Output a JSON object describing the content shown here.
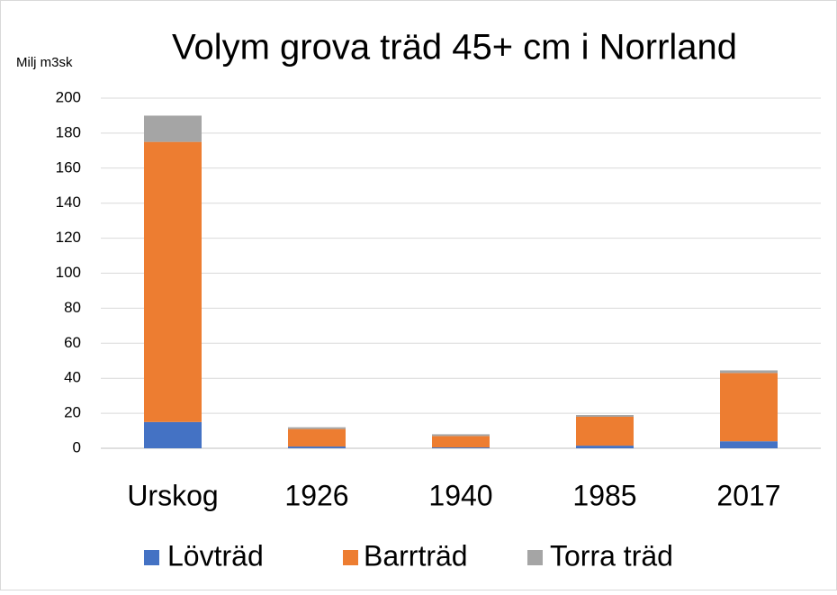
{
  "chart_data": {
    "type": "bar",
    "stacked": true,
    "title": "Volym grova träd 45+ cm i Norrland",
    "y_label": "Milj m3sk",
    "categories": [
      "Urskog",
      "1926",
      "1940",
      "1985",
      "2017"
    ],
    "series": [
      {
        "name": "Lövträd",
        "color": "#4472c4",
        "values": [
          15,
          1,
          0.5,
          1.5,
          4
        ]
      },
      {
        "name": "Barrträd",
        "color": "#ed7d31",
        "values": [
          160,
          10,
          6.5,
          16.5,
          39
        ]
      },
      {
        "name": "Torra träd",
        "color": "#a5a5a5",
        "values": [
          15,
          1,
          1,
          1,
          1.5
        ]
      }
    ],
    "ylim": [
      0,
      200
    ],
    "yticks": [
      0,
      20,
      40,
      60,
      80,
      100,
      120,
      140,
      160,
      180,
      200
    ],
    "grid": true,
    "legend": "bottom"
  }
}
